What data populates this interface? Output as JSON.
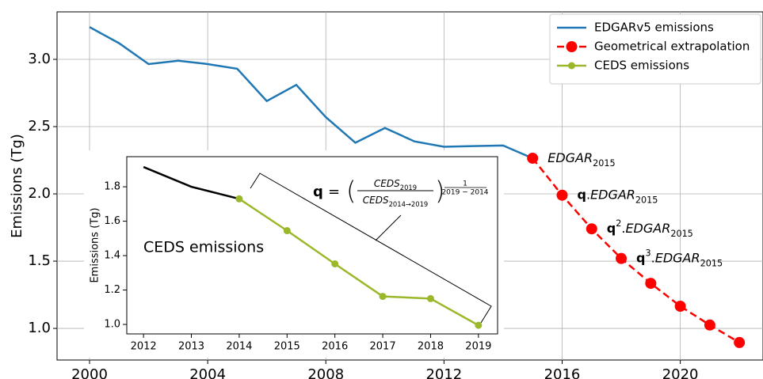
{
  "chart_data": [
    {
      "type": "line",
      "ylabel": "Emissions (Tg)",
      "xlim": [
        1998.9,
        2022.8
      ],
      "ylim": [
        0.765,
        3.353
      ],
      "xticks": [
        2000,
        2004,
        2008,
        2012,
        2016,
        2020
      ],
      "yticks": [
        {
          "value": 1,
          "label": "1.0"
        },
        {
          "value": 1.5,
          "label": "1.5"
        },
        {
          "value": 2,
          "label": "2.0"
        },
        {
          "value": 2.5,
          "label": "2.5"
        },
        {
          "value": 3,
          "label": "3.0"
        }
      ],
      "grid": true,
      "legend": "upper right",
      "series": [
        {
          "name": "EDGARv5 emissions",
          "color": "#1f77b4",
          "marker": false,
          "dashed": false,
          "x": [
            2000,
            2001,
            2002,
            2003,
            2004,
            2005,
            2006,
            2007,
            2008,
            2009,
            2010,
            2011,
            2012,
            2013,
            2014,
            2015
          ],
          "values": [
            3.24,
            3.12,
            2.965,
            2.99,
            2.965,
            2.93,
            2.69,
            2.81,
            2.57,
            2.38,
            2.49,
            2.39,
            2.35,
            2.355,
            2.36,
            2.265
          ]
        },
        {
          "name": "Geometrical extrapolation",
          "color": "#ff0000",
          "marker": true,
          "dashed": true,
          "x": [
            2015,
            2016,
            2017,
            2018,
            2019,
            2020,
            2021,
            2022
          ],
          "values": [
            2.265,
            1.99,
            1.74,
            1.52,
            1.335,
            1.165,
            1.025,
            0.895
          ]
        }
      ],
      "annotations": [
        [
          {
            "text": "EDGAR",
            "style": "italic"
          },
          {
            "text": "2015",
            "style": "sub"
          }
        ],
        [
          {
            "text": "q",
            "style": "bold"
          },
          {
            "text": "."
          },
          {
            "text": "EDGAR",
            "style": "italic"
          },
          {
            "text": "2015",
            "style": "sub"
          }
        ],
        [
          {
            "text": "q",
            "style": "bold"
          },
          {
            "text": "2",
            "style": "sup"
          },
          {
            "text": "."
          },
          {
            "text": "EDGAR",
            "style": "italic"
          },
          {
            "text": "2015",
            "style": "sub"
          }
        ],
        [
          {
            "text": "q",
            "style": "bold"
          },
          {
            "text": "3",
            "style": "sup"
          },
          {
            "text": "."
          },
          {
            "text": "EDGAR",
            "style": "italic"
          },
          {
            "text": "2015",
            "style": "sub"
          }
        ]
      ]
    },
    {
      "type": "line",
      "ylabel": "Emissions (Tg)",
      "xlim": [
        2011.65,
        2019.4
      ],
      "ylim": [
        0.945,
        1.975
      ],
      "xticks": [
        2012,
        2013,
        2014,
        2015,
        2016,
        2017,
        2018,
        2019
      ],
      "yticks": [
        {
          "value": 1,
          "label": "1.0"
        },
        {
          "value": 1.2,
          "label": "1.2"
        },
        {
          "value": 1.4,
          "label": "1.4"
        },
        {
          "value": 1.6,
          "label": "1.6"
        },
        {
          "value": 1.8,
          "label": "1.8"
        }
      ],
      "grid": false,
      "series": [
        {
          "color": "#000000",
          "marker": false,
          "dashed": false,
          "x": [
            2012,
            2013,
            2014
          ],
          "values": [
            1.915,
            1.8,
            1.73
          ]
        },
        {
          "name": "CEDS emissions",
          "color": "#9ab82a",
          "marker": true,
          "dashed": false,
          "x": [
            2014,
            2015,
            2016,
            2017,
            2018,
            2019
          ],
          "values": [
            1.73,
            1.545,
            1.352,
            1.163,
            1.15,
            0.995
          ]
        }
      ],
      "label": "CEDS emissions",
      "formula": {
        "lhs": "q",
        "eq": "=",
        "open": "(",
        "close": ")",
        "num": [
          {
            "text": "CEDS",
            "style": "italic"
          },
          {
            "text": "2019",
            "style": "sub"
          }
        ],
        "den": [
          {
            "text": "CEDS",
            "style": "italic"
          },
          {
            "text": "2014→2019",
            "style": "sub"
          }
        ],
        "exp_num": "1",
        "exp_den": "2019 − 2014"
      }
    }
  ]
}
